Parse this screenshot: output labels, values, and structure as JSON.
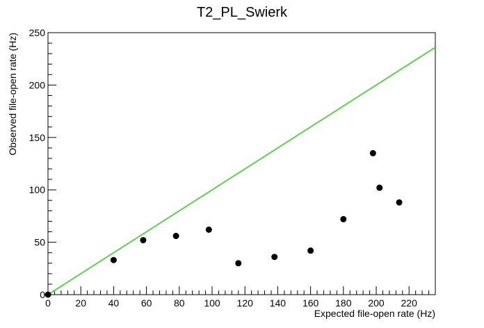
{
  "chart_data": {
    "type": "scatter",
    "title": "T2_PL_Swierk",
    "xlabel": "Expected file-open rate (Hz)",
    "ylabel": "Observed file-open rate (Hz)",
    "xlim": [
      0,
      236
    ],
    "ylim": [
      0,
      250
    ],
    "x_ticks": [
      0,
      20,
      40,
      60,
      80,
      100,
      120,
      140,
      160,
      180,
      200,
      220
    ],
    "y_ticks": [
      0,
      50,
      100,
      150,
      200,
      250
    ],
    "grid": false,
    "series": [
      {
        "marker_color": "#000000",
        "points": [
          {
            "x": 0,
            "y": 0
          },
          {
            "x": 40,
            "y": 33
          },
          {
            "x": 58,
            "y": 52
          },
          {
            "x": 78,
            "y": 56
          },
          {
            "x": 98,
            "y": 62
          },
          {
            "x": 116,
            "y": 30
          },
          {
            "x": 138,
            "y": 36
          },
          {
            "x": 160,
            "y": 42
          },
          {
            "x": 180,
            "y": 72
          },
          {
            "x": 198,
            "y": 135
          },
          {
            "x": 202,
            "y": 102
          },
          {
            "x": 214,
            "y": 88
          }
        ]
      }
    ],
    "reference_line": {
      "description": "y = x",
      "color": "#5fcf50",
      "from": {
        "x": 0,
        "y": 0
      },
      "to": {
        "x": 236,
        "y": 236
      }
    }
  }
}
